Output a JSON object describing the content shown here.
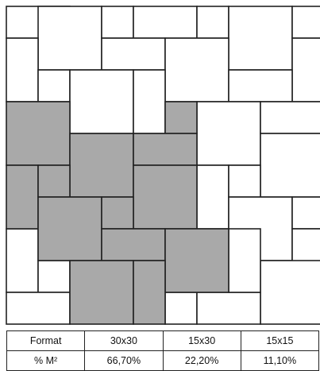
{
  "caption": "",
  "colors": {
    "tile_fill": "#ffffff",
    "shaded_fill": "#a9a9a9",
    "grout": "#222222"
  },
  "legend": {
    "header": "Format",
    "row_label": "% M²",
    "columns": [
      {
        "format": "30x30",
        "percent": "66,70%"
      },
      {
        "format": "15x30",
        "percent": "22,20%"
      },
      {
        "format": "15x15",
        "percent": "11,10%"
      }
    ]
  }
}
